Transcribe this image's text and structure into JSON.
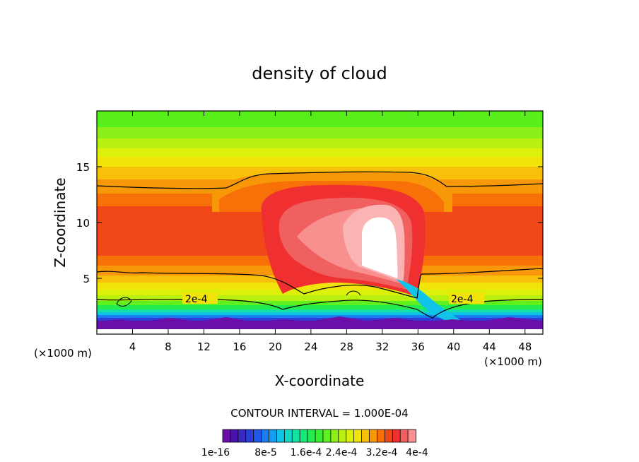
{
  "chart_data": {
    "type": "heatmap",
    "title": "density of cloud",
    "xlabel": "X-coordinate",
    "ylabel": "Z-coordinate",
    "x_unit_left": "(×1000 m)",
    "x_unit_right": "(×1000 m)",
    "xlim": [
      0,
      50
    ],
    "ylim": [
      0,
      20
    ],
    "x_ticks": [
      4,
      8,
      12,
      16,
      20,
      24,
      28,
      32,
      36,
      40,
      44,
      48
    ],
    "y_ticks": [
      5,
      10,
      15
    ],
    "contour_labels": [
      {
        "text": "2e-4",
        "x": 11.8,
        "y": 3.1
      },
      {
        "text": "2e-4",
        "x": 41.0,
        "y": 3.1
      }
    ],
    "contour_interval_text": "CONTOUR INTERVAL = 1.000E-04",
    "colorbar": {
      "levels": 24,
      "colors": [
        "#6a0fa8",
        "#4a10b0",
        "#3a2ac0",
        "#2c3ed6",
        "#2058e8",
        "#1a7cf0",
        "#14a0f0",
        "#10c4e8",
        "#12d8c8",
        "#14e0a0",
        "#18e878",
        "#22ec50",
        "#38ee30",
        "#60f020",
        "#8cf018",
        "#b8f010",
        "#dcf00a",
        "#f0e40a",
        "#f8c00a",
        "#f89808",
        "#f87008",
        "#f04818",
        "#f03030",
        "#f06060",
        "#f89090"
      ],
      "tick_labels": [
        "1e-16",
        "8e-5",
        "1.6e-4",
        "2.4e-4",
        "3.2e-4",
        "4e-4"
      ]
    },
    "bands": [
      {
        "level": 1,
        "z": 1.0,
        "color": "#6a0fa8"
      },
      {
        "level": 2,
        "z": 1.4,
        "color": "#2c3ed6"
      },
      {
        "level": 3,
        "z": 1.8,
        "color": "#10c4e8"
      },
      {
        "level": 4,
        "z": 2.3,
        "color": "#18e878"
      },
      {
        "level": 5,
        "z": 2.8,
        "color": "#60f020"
      },
      {
        "level": 6,
        "z": 3.6,
        "color": "#b8f010"
      },
      {
        "level": 7,
        "z": 4.4,
        "color": "#f0e40a"
      },
      {
        "level": 8,
        "z": 5.3,
        "color": "#f8c00a"
      },
      {
        "level": 9,
        "z": 6.2,
        "color": "#f89808"
      },
      {
        "level": 10,
        "z": 7.2,
        "color": "#f87008"
      },
      {
        "level": 11,
        "z": 10.8,
        "color": "#f04818"
      },
      {
        "level": 12,
        "z": 12.0,
        "color": "#f87008"
      },
      {
        "level": 13,
        "z": 13.0,
        "color": "#f89808"
      },
      {
        "level": 14,
        "z": 14.0,
        "color": "#f8c00a"
      },
      {
        "level": 15,
        "z": 15.0,
        "color": "#f0e40a"
      },
      {
        "level": 16,
        "z": 16.0,
        "color": "#dcf00a"
      },
      {
        "level": 17,
        "z": 17.0,
        "color": "#b8f010"
      },
      {
        "level": 18,
        "z": 18.2,
        "color": "#8cf018"
      },
      {
        "level": 19,
        "z": 20.0,
        "color": "#60f020"
      }
    ]
  }
}
